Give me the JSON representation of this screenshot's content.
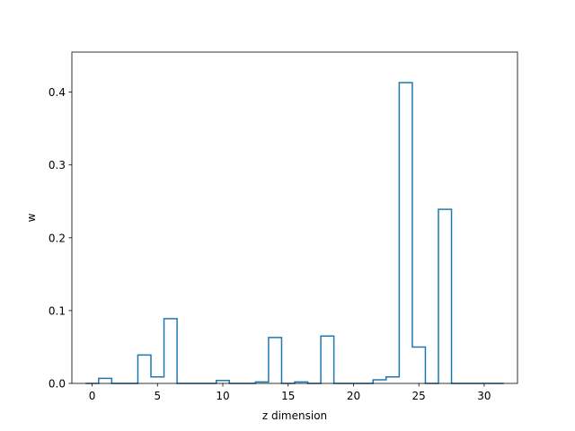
{
  "chart_data": {
    "type": "bar",
    "style": "step-histogram",
    "xlabel": "z dimension",
    "ylabel": "w",
    "xlim": [
      -1.55,
      32.55
    ],
    "ylim": [
      0,
      0.455
    ],
    "x_ticks": [
      0,
      5,
      10,
      15,
      20,
      25,
      30
    ],
    "y_ticks": [
      0.0,
      0.1,
      0.2,
      0.3,
      0.4
    ],
    "x_tick_labels": [
      "0",
      "5",
      "10",
      "15",
      "20",
      "25",
      "30"
    ],
    "y_tick_labels": [
      "0.0",
      "0.1",
      "0.2",
      "0.3",
      "0.4"
    ],
    "grid": false,
    "line_color": "#1f77b4",
    "categories": [
      0,
      1,
      2,
      3,
      4,
      5,
      6,
      7,
      8,
      9,
      10,
      11,
      12,
      13,
      14,
      15,
      16,
      17,
      18,
      19,
      20,
      21,
      22,
      23,
      24,
      25,
      26,
      27,
      28,
      29,
      30,
      31
    ],
    "values": [
      0.0,
      0.007,
      0.0,
      0.0,
      0.039,
      0.009,
      0.089,
      0.0,
      0.0,
      0.0,
      0.004,
      0.0,
      0.0,
      0.002,
      0.063,
      0.0,
      0.002,
      0.0,
      0.065,
      0.0,
      0.0,
      0.0,
      0.005,
      0.009,
      0.413,
      0.05,
      0.0,
      0.239,
      0.0,
      0.0,
      0.0,
      0.0
    ]
  }
}
